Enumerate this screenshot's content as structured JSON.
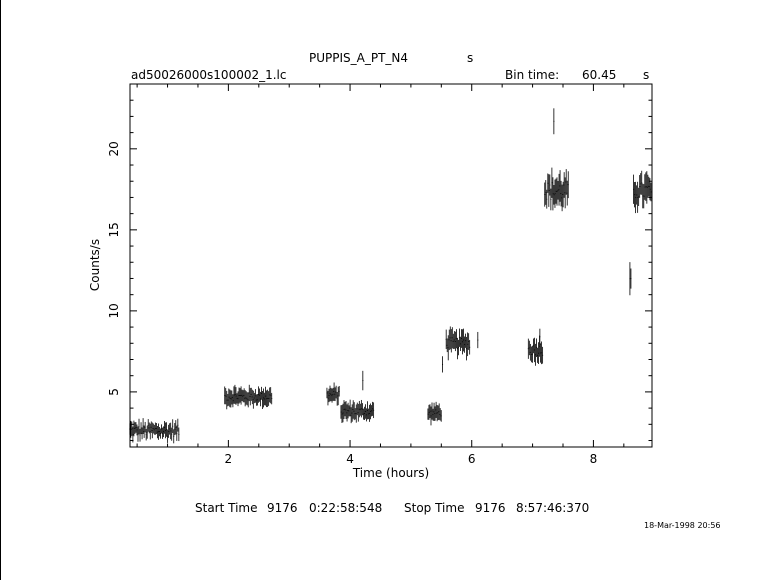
{
  "header": {
    "object_name": "PUPPIS_A_PT_N4",
    "object_suffix": "s",
    "file_name": "ad50026000s100002_1.lc",
    "bin_label": "Bin time:",
    "bin_value": "60.45",
    "bin_unit": "s"
  },
  "footer": {
    "start_label": "Start Time",
    "start_day": "9176",
    "start_time": "0:22:58:548",
    "stop_label": "Stop Time",
    "stop_day": "9176",
    "stop_time": "8:57:46:370",
    "timestamp": "18-Mar-1998 20:56"
  },
  "chart_data": {
    "type": "scatter",
    "title": "PUPPIS_A_PT_N4",
    "xlabel": "Time (hours)",
    "ylabel": "Counts/s",
    "xlim": [
      0.383,
      8.963
    ],
    "ylim": [
      1.6,
      24.0
    ],
    "xticks": [
      2,
      4,
      6,
      8
    ],
    "yticks": [
      5,
      10,
      15,
      20
    ],
    "grid": false,
    "error_bars": true,
    "segments": [
      {
        "x_start": 0.38,
        "x_end": 1.2,
        "mean": 2.6,
        "spread": 0.35,
        "err": 0.4
      },
      {
        "x_start": 1.94,
        "x_end": 2.72,
        "mean": 4.7,
        "spread": 0.25,
        "err": 0.45
      },
      {
        "x_start": 3.62,
        "x_end": 3.83,
        "mean": 4.8,
        "spread": 0.25,
        "err": 0.45
      },
      {
        "x_start": 3.85,
        "x_end": 4.4,
        "mean": 3.8,
        "spread": 0.25,
        "err": 0.45
      },
      {
        "x_start": 5.28,
        "x_end": 5.5,
        "mean": 3.7,
        "spread": 0.2,
        "err": 0.45
      },
      {
        "x_start": 5.58,
        "x_end": 5.97,
        "mean": 8.0,
        "spread": 0.35,
        "err": 0.6
      },
      {
        "x_start": 6.93,
        "x_end": 7.18,
        "mean": 7.6,
        "spread": 0.35,
        "err": 0.6
      },
      {
        "x_start": 7.2,
        "x_end": 7.6,
        "mean": 17.4,
        "spread": 0.6,
        "err": 0.8
      },
      {
        "x_start": 8.6,
        "x_end": 8.63,
        "mean": 11.9,
        "spread": 0.1,
        "err": 0.8
      },
      {
        "x_start": 8.66,
        "x_end": 8.963,
        "mean": 17.4,
        "spread": 0.55,
        "err": 0.8
      }
    ],
    "isolated_points": [
      {
        "x": 5.52,
        "y": 6.7,
        "err": 0.5
      },
      {
        "x": 6.1,
        "y": 8.2,
        "err": 0.5
      },
      {
        "x": 7.35,
        "y": 21.7,
        "err": 0.8
      },
      {
        "x": 7.12,
        "y": 8.4,
        "err": 0.5
      },
      {
        "x": 4.21,
        "y": 5.7,
        "err": 0.6
      }
    ]
  }
}
